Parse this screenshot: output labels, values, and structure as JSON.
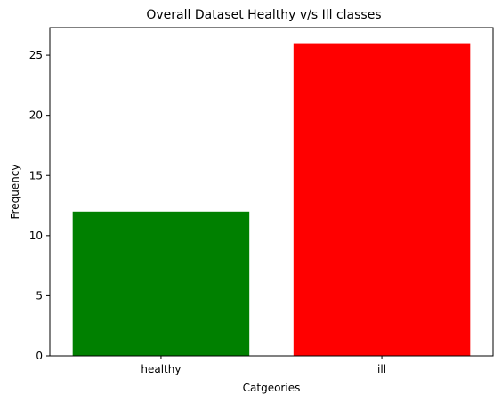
{
  "chart_data": {
    "type": "bar",
    "title": "Overall Dataset Healthy v/s Ill classes",
    "xlabel": "Catgeories",
    "ylabel": "Frequency",
    "categories": [
      "healthy",
      "ill"
    ],
    "values": [
      12,
      26
    ],
    "colors": [
      "#008000",
      "#ff0000"
    ],
    "ylim": [
      0,
      27.3
    ],
    "yticks": [
      0,
      5,
      10,
      15,
      20,
      25
    ],
    "grid": false,
    "legend": "none"
  }
}
